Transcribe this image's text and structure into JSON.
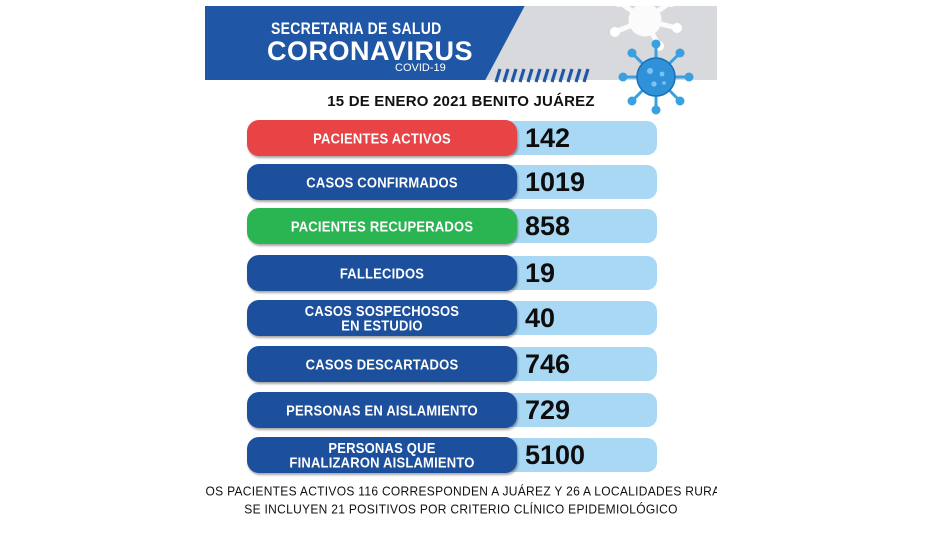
{
  "header": {
    "line1": "SECRETARIA DE SALUD",
    "line2": "CORONAVIRUS",
    "line3": "COVID-19",
    "colors": {
      "primary_blue": "#1f57a6",
      "gray": "#d8d9dc",
      "virus_blue": "#3aa0e0"
    },
    "icon": "coronavirus-icon"
  },
  "date_line": "15 DE ENERO 2021 BENITO JUÁREZ",
  "stats": [
    {
      "label": "PACIENTES ACTIVOS",
      "value": "142",
      "color": "#e84345"
    },
    {
      "label": "CASOS CONFIRMADOS",
      "value": "1019",
      "color": "#1c4f9c"
    },
    {
      "label": "PACIENTES RECUPERADOS",
      "value": "858",
      "color": "#2ab552"
    },
    {
      "label": "FALLECIDOS",
      "value": "19",
      "color": "#1c4f9c"
    },
    {
      "label": "CASOS SOSPECHOSOS\nEN ESTUDIO",
      "value": "40",
      "color": "#1c4f9c"
    },
    {
      "label": "CASOS DESCARTADOS",
      "value": "746",
      "color": "#1c4f9c"
    },
    {
      "label": "PERSONAS EN AISLAMIENTO",
      "value": "729",
      "color": "#1c4f9c"
    },
    {
      "label": "PERSONAS QUE\nFINALIZARON AISLAMIENTO",
      "value": "5100",
      "color": "#1c4f9c"
    }
  ],
  "footer": {
    "line1": "OS PACIENTES ACTIVOS 116 CORRESPONDEN A JUÁREZ Y 26 A LOCALIDADES RURA",
    "line2": "SE INCLUYEN 21 POSITIVOS  POR  CRITERIO CLÍNICO EPIDEMIOLÓGICO"
  }
}
